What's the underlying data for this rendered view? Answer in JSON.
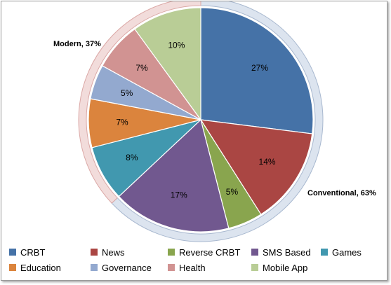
{
  "chart_data": {
    "type": "pie",
    "title": "",
    "categories": [
      "CRBT",
      "News",
      "Reverse CRBT",
      "SMS Based",
      "Games",
      "Education",
      "Governance",
      "Health",
      "Mobile App"
    ],
    "values": [
      27,
      14,
      5,
      17,
      8,
      7,
      5,
      7,
      10
    ],
    "value_labels": [
      "27%",
      "14%",
      "5%",
      "17%",
      "8%",
      "7%",
      "5%",
      "7%",
      "10%"
    ],
    "colors": [
      "#4572A7",
      "#AA4643",
      "#89A54E",
      "#71588F",
      "#4198AF",
      "#DB843D",
      "#93A9CF",
      "#D19392",
      "#B9CD96"
    ],
    "groups": [
      {
        "label": "Conventional, 63%",
        "value": 63,
        "categories": [
          "CRBT",
          "News",
          "Reverse CRBT",
          "SMS Based"
        ],
        "ring_color": "#dce4ef"
      },
      {
        "label": "Modern, 37%",
        "value": 37,
        "categories": [
          "Games",
          "Education",
          "Governance",
          "Health",
          "Mobile App"
        ],
        "ring_color": "#f2dcdb"
      }
    ],
    "legend": {
      "position": "bottom"
    }
  }
}
